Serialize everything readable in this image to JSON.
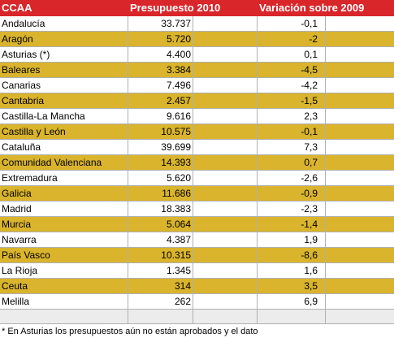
{
  "table": {
    "header": [
      "CCAA",
      "Presupuesto 2010",
      "Variación sobre 2009"
    ],
    "rows": [
      [
        "Andalucía",
        "33.737",
        "-0,1"
      ],
      [
        "Aragón",
        "5.720",
        "-2"
      ],
      [
        "Asturias (*)",
        "4.400",
        "0,1"
      ],
      [
        "Baleares",
        "3.384",
        "-4,5"
      ],
      [
        "Canarias",
        "7.496",
        "-4,2"
      ],
      [
        "Cantabria",
        "2.457",
        "-1,5"
      ],
      [
        "Castilla-La Mancha",
        "9.616",
        "2,3"
      ],
      [
        "Castilla y León",
        "10.575",
        "-0,1"
      ],
      [
        "Cataluña",
        "39.699",
        "7,3"
      ],
      [
        "Comunidad Valenciana",
        "14.393",
        "0,7"
      ],
      [
        "Extremadura",
        "5.620",
        "-2,6"
      ],
      [
        "Galicia",
        "11.686",
        "-0,9"
      ],
      [
        "Madrid",
        "18.383",
        "-2,3"
      ],
      [
        "Murcia",
        "5.064",
        "-1,4"
      ],
      [
        "Navarra",
        "4.387",
        "1,9"
      ],
      [
        "País Vasco",
        "10.315",
        "-8,6"
      ],
      [
        "La Rioja",
        "1.345",
        "1,6"
      ],
      [
        "Ceuta",
        "314",
        "3,5"
      ],
      [
        "Melilla",
        "262",
        "6,9"
      ]
    ]
  },
  "footnote": "* En Asturias los presupuestos aún no están aprobados y el dato"
}
